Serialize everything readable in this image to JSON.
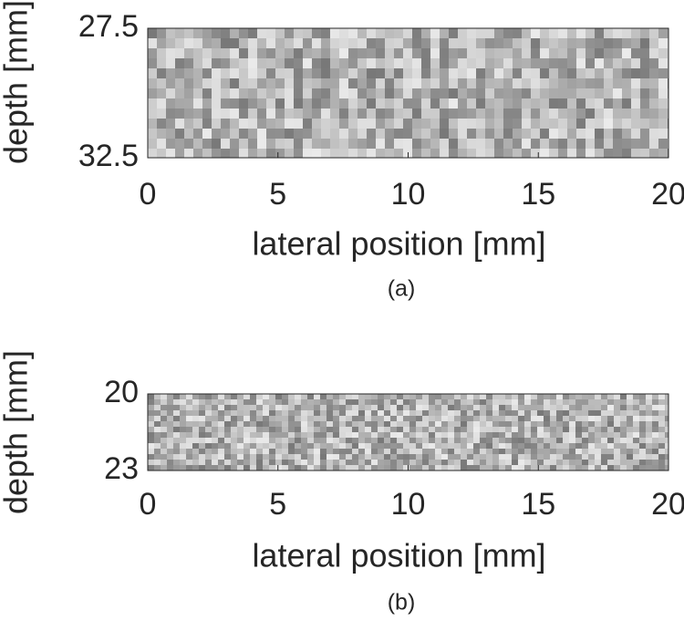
{
  "chart_data": [
    {
      "type": "heatmap",
      "caption": "(a)",
      "xlabel": "lateral position [mm]",
      "ylabel": "depth [mm]",
      "xlim": [
        0,
        20
      ],
      "xticks": [
        0,
        5,
        10,
        15,
        20
      ],
      "ylim": [
        27.5,
        32.5
      ],
      "yticks": [
        27.5,
        32.5
      ],
      "y_reversed": true
    },
    {
      "type": "heatmap",
      "caption": "(b)",
      "xlabel": "lateral position [mm]",
      "ylabel": "depth [mm]",
      "xlim": [
        0,
        20
      ],
      "xticks": [
        0,
        5,
        10,
        15,
        20
      ],
      "ylim": [
        20,
        23
      ],
      "yticks": [
        20,
        23
      ],
      "y_reversed": true
    }
  ]
}
